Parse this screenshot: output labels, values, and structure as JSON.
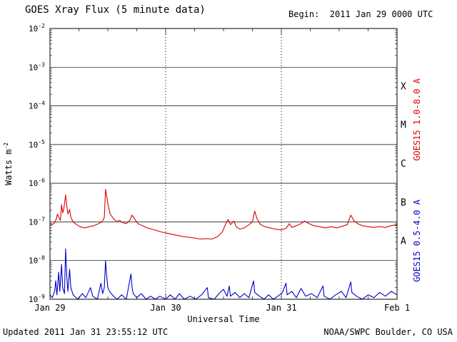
{
  "header": {
    "title": "GOES Xray Flux (5 minute data)",
    "begin_label": "Begin:  2011 Jan 29 0000 UTC"
  },
  "footer": {
    "updated": "Updated 2011 Jan 31 23:55:12 UTC",
    "source": "NOAA/SWPC Boulder, CO USA"
  },
  "chart_data": {
    "type": "line",
    "title": "GOES Xray Flux (5 minute data)",
    "xlabel": "Universal Time",
    "ylabel_main": "Watts m",
    "ylabel_sup": "-2",
    "x_range_days": [
      0,
      3
    ],
    "x_tick_labels": [
      "Jan 29",
      "Jan 30",
      "Jan 31",
      "Feb 1"
    ],
    "x_tick_positions": [
      0,
      1,
      2,
      3
    ],
    "x_minor_tick_interval": 0.25,
    "y_log_range": [
      -9,
      -2
    ],
    "y_tick_exponents": [
      -2,
      -3,
      -4,
      -5,
      -6,
      -7,
      -8,
      -9
    ],
    "grid": {
      "horizontal": "solid",
      "vertical_day_lines": "dotted"
    },
    "flare_classes": [
      {
        "label": "X",
        "log_flux": -3.5
      },
      {
        "label": "M",
        "log_flux": -4.5
      },
      {
        "label": "C",
        "log_flux": -5.5
      },
      {
        "label": "B",
        "log_flux": -6.5
      },
      {
        "label": "A",
        "log_flux": -7.5
      }
    ],
    "right_axis_labels": [
      {
        "text": "GOES15 1.0-8.0 A",
        "color": "#dd0000"
      },
      {
        "text": "GOES15 0.5-4.0 A",
        "color": "#0000cc"
      }
    ],
    "series": [
      {
        "name": "GOES15 1.0-8.0 A",
        "color": "#dd0000",
        "points": [
          [
            0.0,
            9e-08
          ],
          [
            0.02,
            8.5e-08
          ],
          [
            0.04,
            9.5e-08
          ],
          [
            0.055,
            1.2e-07
          ],
          [
            0.065,
            1.6e-07
          ],
          [
            0.075,
            1.3e-07
          ],
          [
            0.09,
            1.1e-07
          ],
          [
            0.1,
            2.8e-07
          ],
          [
            0.11,
            1.7e-07
          ],
          [
            0.12,
            2.2e-07
          ],
          [
            0.135,
            5e-07
          ],
          [
            0.145,
            2.6e-07
          ],
          [
            0.155,
            1.6e-07
          ],
          [
            0.17,
            2.1e-07
          ],
          [
            0.18,
            1.3e-07
          ],
          [
            0.2,
            1e-07
          ],
          [
            0.23,
            8.5e-08
          ],
          [
            0.26,
            7.5e-08
          ],
          [
            0.3,
            7e-08
          ],
          [
            0.34,
            7.5e-08
          ],
          [
            0.38,
            8e-08
          ],
          [
            0.42,
            9e-08
          ],
          [
            0.45,
            1e-07
          ],
          [
            0.47,
            1.3e-07
          ],
          [
            0.48,
            7e-07
          ],
          [
            0.5,
            3e-07
          ],
          [
            0.52,
            1.6e-07
          ],
          [
            0.55,
            1.2e-07
          ],
          [
            0.58,
            1e-07
          ],
          [
            0.6,
            1.1e-07
          ],
          [
            0.63,
            9.5e-08
          ],
          [
            0.66,
            9e-08
          ],
          [
            0.69,
            1.1e-07
          ],
          [
            0.71,
            1.5e-07
          ],
          [
            0.73,
            1.2e-07
          ],
          [
            0.76,
            9e-08
          ],
          [
            0.8,
            8e-08
          ],
          [
            0.84,
            7e-08
          ],
          [
            0.88,
            6.5e-08
          ],
          [
            0.92,
            6e-08
          ],
          [
            0.96,
            5.5e-08
          ],
          [
            1.0,
            5.2e-08
          ],
          [
            1.05,
            4.8e-08
          ],
          [
            1.1,
            4.5e-08
          ],
          [
            1.15,
            4.2e-08
          ],
          [
            1.2,
            4e-08
          ],
          [
            1.25,
            3.8e-08
          ],
          [
            1.3,
            3.6e-08
          ],
          [
            1.35,
            3.7e-08
          ],
          [
            1.4,
            3.6e-08
          ],
          [
            1.45,
            4.2e-08
          ],
          [
            1.49,
            5.5e-08
          ],
          [
            1.52,
            9e-08
          ],
          [
            1.54,
            1.15e-07
          ],
          [
            1.56,
            8.5e-08
          ],
          [
            1.59,
            1.05e-07
          ],
          [
            1.61,
            7.5e-08
          ],
          [
            1.64,
            6.5e-08
          ],
          [
            1.68,
            7e-08
          ],
          [
            1.72,
            8.5e-08
          ],
          [
            1.75,
            1e-07
          ],
          [
            1.77,
            1.9e-07
          ],
          [
            1.79,
            1.2e-07
          ],
          [
            1.82,
            8.5e-08
          ],
          [
            1.86,
            7.5e-08
          ],
          [
            1.9,
            7e-08
          ],
          [
            1.95,
            6.5e-08
          ],
          [
            2.0,
            6.2e-08
          ],
          [
            2.04,
            6.8e-08
          ],
          [
            2.07,
            9e-08
          ],
          [
            2.09,
            7.2e-08
          ],
          [
            2.13,
            8e-08
          ],
          [
            2.17,
            9e-08
          ],
          [
            2.2,
            1.05e-07
          ],
          [
            2.24,
            9e-08
          ],
          [
            2.28,
            8e-08
          ],
          [
            2.33,
            7.5e-08
          ],
          [
            2.38,
            7e-08
          ],
          [
            2.43,
            7.5e-08
          ],
          [
            2.48,
            7e-08
          ],
          [
            2.53,
            7.8e-08
          ],
          [
            2.57,
            8.5e-08
          ],
          [
            2.6,
            1.5e-07
          ],
          [
            2.63,
            1.05e-07
          ],
          [
            2.66,
            9e-08
          ],
          [
            2.7,
            8e-08
          ],
          [
            2.75,
            7.5e-08
          ],
          [
            2.8,
            7.2e-08
          ],
          [
            2.85,
            7.6e-08
          ],
          [
            2.9,
            7.2e-08
          ],
          [
            2.95,
            8e-08
          ],
          [
            3.0,
            8.5e-08
          ]
        ]
      },
      {
        "name": "GOES15 0.5-4.0 A",
        "color": "#0000cc",
        "points": [
          [
            0.0,
            1.3e-09
          ],
          [
            0.02,
            1.1e-09
          ],
          [
            0.04,
            1.6e-09
          ],
          [
            0.05,
            3e-09
          ],
          [
            0.06,
            1.3e-09
          ],
          [
            0.075,
            5e-09
          ],
          [
            0.085,
            1.6e-09
          ],
          [
            0.1,
            8e-09
          ],
          [
            0.11,
            2e-09
          ],
          [
            0.125,
            1.4e-09
          ],
          [
            0.135,
            2e-08
          ],
          [
            0.145,
            4e-09
          ],
          [
            0.155,
            1.6e-09
          ],
          [
            0.17,
            6e-09
          ],
          [
            0.18,
            2e-09
          ],
          [
            0.2,
            1.3e-09
          ],
          [
            0.24,
            1e-09
          ],
          [
            0.28,
            1.4e-09
          ],
          [
            0.31,
            1.1e-09
          ],
          [
            0.35,
            2e-09
          ],
          [
            0.37,
            1.2e-09
          ],
          [
            0.41,
            1e-09
          ],
          [
            0.44,
            2.6e-09
          ],
          [
            0.455,
            1.4e-09
          ],
          [
            0.47,
            2e-09
          ],
          [
            0.48,
            1e-08
          ],
          [
            0.49,
            4e-09
          ],
          [
            0.5,
            2e-09
          ],
          [
            0.52,
            1.5e-09
          ],
          [
            0.55,
            1.2e-09
          ],
          [
            0.58,
            1e-09
          ],
          [
            0.62,
            1.3e-09
          ],
          [
            0.66,
            1e-09
          ],
          [
            0.7,
            4.5e-09
          ],
          [
            0.71,
            2e-09
          ],
          [
            0.72,
            1.4e-09
          ],
          [
            0.75,
            1.1e-09
          ],
          [
            0.79,
            1.4e-09
          ],
          [
            0.83,
            1e-09
          ],
          [
            0.87,
            1.2e-09
          ],
          [
            0.91,
            1e-09
          ],
          [
            0.95,
            1.2e-09
          ],
          [
            1.0,
            1e-09
          ],
          [
            1.04,
            1.3e-09
          ],
          [
            1.08,
            1e-09
          ],
          [
            1.12,
            1.4e-09
          ],
          [
            1.16,
            1e-09
          ],
          [
            1.21,
            1.2e-09
          ],
          [
            1.26,
            1e-09
          ],
          [
            1.31,
            1.3e-09
          ],
          [
            1.36,
            2e-09
          ],
          [
            1.37,
            1.1e-09
          ],
          [
            1.42,
            1e-09
          ],
          [
            1.46,
            1.4e-09
          ],
          [
            1.5,
            1.8e-09
          ],
          [
            1.53,
            1.2e-09
          ],
          [
            1.55,
            2.2e-09
          ],
          [
            1.56,
            1.2e-09
          ],
          [
            1.6,
            1.5e-09
          ],
          [
            1.64,
            1.1e-09
          ],
          [
            1.68,
            1.4e-09
          ],
          [
            1.72,
            1.1e-09
          ],
          [
            1.76,
            3e-09
          ],
          [
            1.77,
            1.5e-09
          ],
          [
            1.81,
            1.2e-09
          ],
          [
            1.85,
            1e-09
          ],
          [
            1.89,
            1.3e-09
          ],
          [
            1.93,
            1e-09
          ],
          [
            1.97,
            1.2e-09
          ],
          [
            2.01,
            1.5e-09
          ],
          [
            2.04,
            2.6e-09
          ],
          [
            2.05,
            1.3e-09
          ],
          [
            2.09,
            1.6e-09
          ],
          [
            2.13,
            1.1e-09
          ],
          [
            2.17,
            1.9e-09
          ],
          [
            2.21,
            1.2e-09
          ],
          [
            2.26,
            1.4e-09
          ],
          [
            2.31,
            1.1e-09
          ],
          [
            2.36,
            2.2e-09
          ],
          [
            2.37,
            1.2e-09
          ],
          [
            2.42,
            1e-09
          ],
          [
            2.47,
            1.3e-09
          ],
          [
            2.52,
            1.6e-09
          ],
          [
            2.56,
            1.1e-09
          ],
          [
            2.6,
            2.8e-09
          ],
          [
            2.61,
            1.5e-09
          ],
          [
            2.65,
            1.2e-09
          ],
          [
            2.7,
            1e-09
          ],
          [
            2.75,
            1.3e-09
          ],
          [
            2.8,
            1.1e-09
          ],
          [
            2.85,
            1.5e-09
          ],
          [
            2.9,
            1.2e-09
          ],
          [
            2.95,
            1.6e-09
          ],
          [
            3.0,
            1.3e-09
          ]
        ]
      }
    ]
  }
}
